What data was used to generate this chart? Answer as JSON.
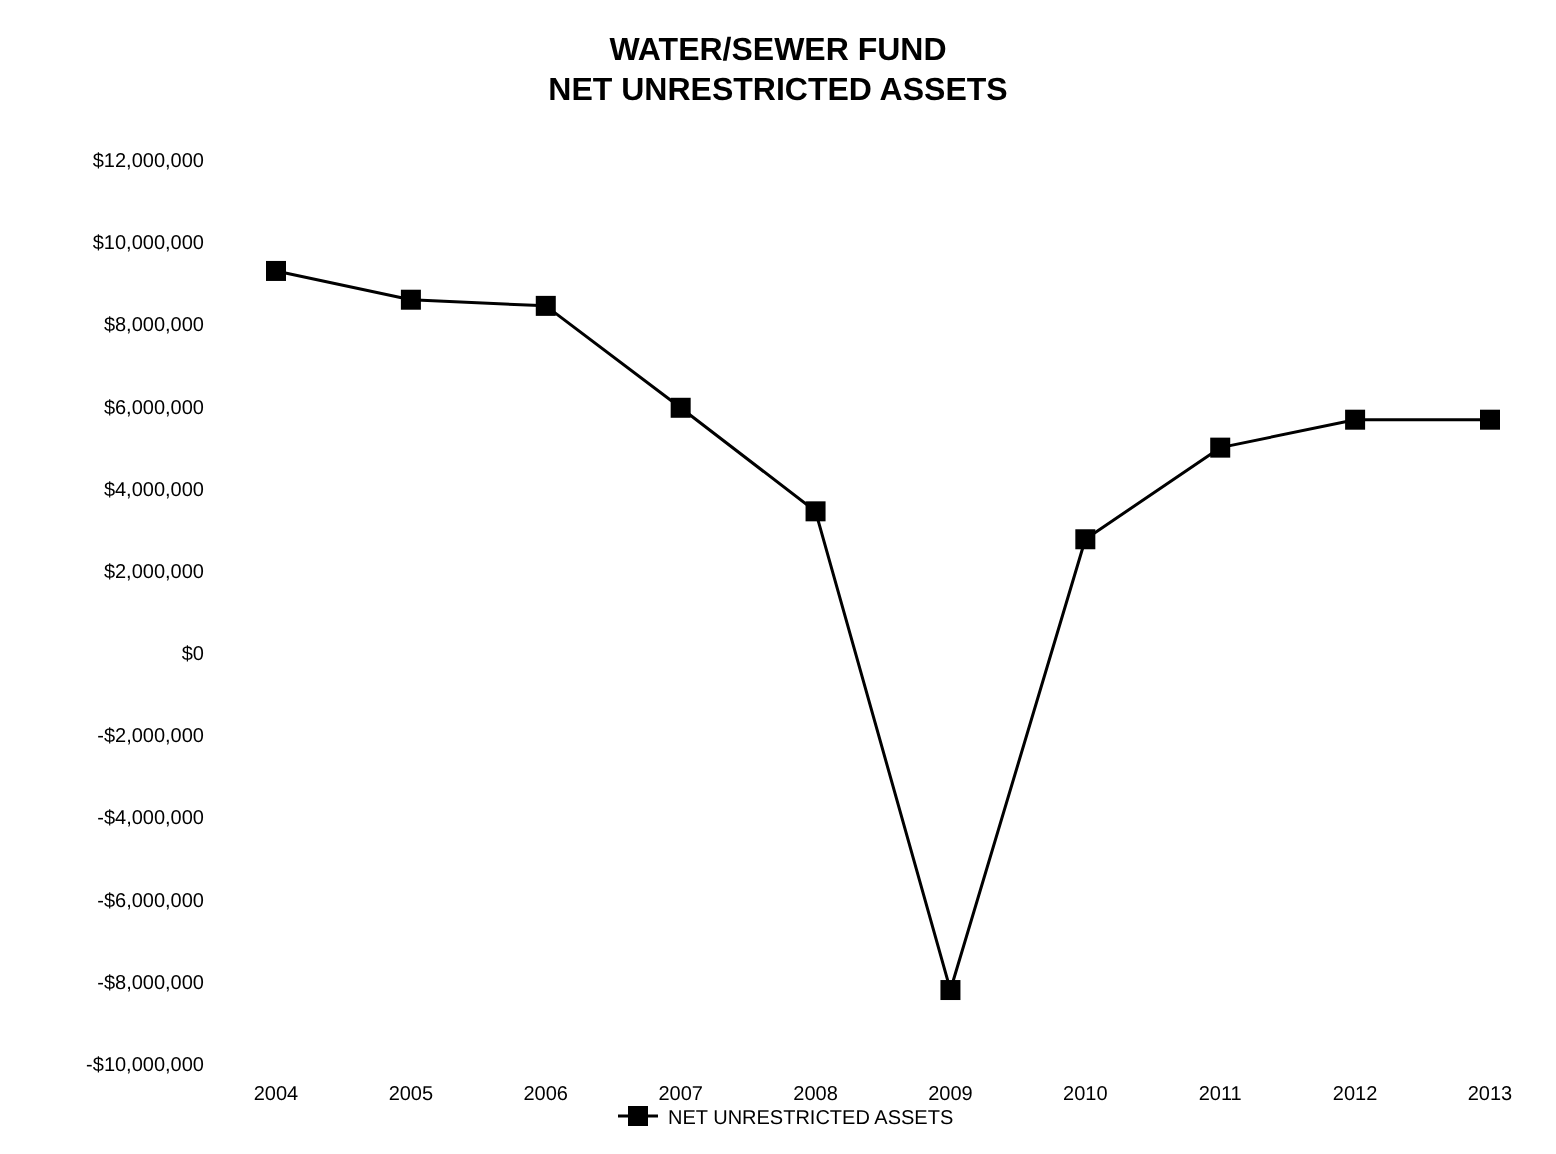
{
  "chart_data": {
    "type": "line",
    "title": "WATER/SEWER FUND\nNET UNRESTRICTED ASSETS",
    "categories": [
      "2004",
      "2005",
      "2006",
      "2007",
      "2008",
      "2009",
      "2010",
      "2011",
      "2012",
      "2013"
    ],
    "series": [
      {
        "name": "NET UNRESTRICTED ASSETS",
        "color": "#000000",
        "values": [
          9300000,
          8600000,
          8450000,
          5970000,
          3450000,
          -8200000,
          2770000,
          5000000,
          5680000,
          5680000
        ]
      }
    ],
    "ylim": [
      -10000000,
      12000000
    ],
    "yticks": [
      {
        "value": -10000000,
        "label": "-$10,000,000"
      },
      {
        "value": -8000000,
        "label": "-$8,000,000"
      },
      {
        "value": -6000000,
        "label": "-$6,000,000"
      },
      {
        "value": -4000000,
        "label": "-$4,000,000"
      },
      {
        "value": -2000000,
        "label": "-$2,000,000"
      },
      {
        "value": 0,
        "label": "$0"
      },
      {
        "value": 2000000,
        "label": "$2,000,000"
      },
      {
        "value": 4000000,
        "label": "$4,000,000"
      },
      {
        "value": 6000000,
        "label": "$6,000,000"
      },
      {
        "value": 8000000,
        "label": "$8,000,000"
      },
      {
        "value": 10000000,
        "label": "$10,000,000"
      },
      {
        "value": 12000000,
        "label": "$12,000,000"
      }
    ],
    "marker": "square",
    "line_style": "solid",
    "grid": false,
    "legend": "bottom"
  }
}
